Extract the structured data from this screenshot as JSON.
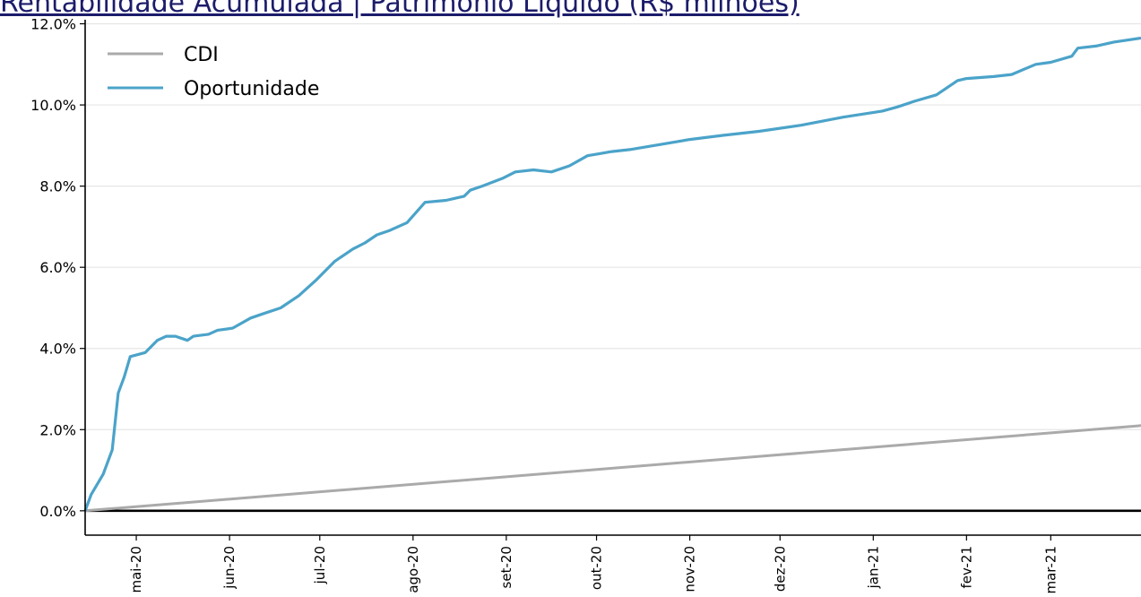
{
  "chart_data": {
    "type": "line",
    "title": "Rentabilidade Acumulada | Patrimônio Líquido (R$ milhões)",
    "xlabel": "",
    "ylabel": "",
    "ylim": [
      -0.006,
      0.121
    ],
    "yticks": [
      0.0,
      0.02,
      0.04,
      0.06,
      0.08,
      0.1,
      0.12
    ],
    "ytick_labels": [
      "0.0%",
      "2.0%",
      "4.0%",
      "6.0%",
      "8.0%",
      "10.0%",
      "12.0%"
    ],
    "xticks": [
      "mai-20",
      "jun-20",
      "jul-20",
      "ago-20",
      "set-20",
      "out-20",
      "nov-20",
      "dez-20",
      "jan-21",
      "fev-21",
      "mar-21"
    ],
    "grid": "horizontal",
    "legend_position": "top-left",
    "colors": {
      "CDI": "#aaaaaa",
      "Oportunidade": "#4ba3c9"
    },
    "series": [
      {
        "name": "CDI",
        "x": [
          "2020-04-14",
          "2021-03-31"
        ],
        "y": [
          0.0,
          0.021
        ]
      },
      {
        "name": "Oportunidade",
        "x": [
          "2020-04-14",
          "2020-04-16",
          "2020-04-20",
          "2020-04-23",
          "2020-04-25",
          "2020-04-27",
          "2020-04-29",
          "2020-05-04",
          "2020-05-08",
          "2020-05-11",
          "2020-05-14",
          "2020-05-18",
          "2020-05-20",
          "2020-05-25",
          "2020-05-28",
          "2020-06-02",
          "2020-06-08",
          "2020-06-12",
          "2020-06-18",
          "2020-06-24",
          "2020-06-30",
          "2020-07-06",
          "2020-07-12",
          "2020-07-16",
          "2020-07-20",
          "2020-07-24",
          "2020-07-30",
          "2020-08-05",
          "2020-08-12",
          "2020-08-18",
          "2020-08-20",
          "2020-08-24",
          "2020-08-31",
          "2020-09-04",
          "2020-09-10",
          "2020-09-16",
          "2020-09-22",
          "2020-09-28",
          "2020-10-02",
          "2020-10-06",
          "2020-10-12",
          "2020-10-20",
          "2020-11-01",
          "2020-11-12",
          "2020-11-24",
          "2020-12-08",
          "2020-12-22",
          "2021-01-04",
          "2021-01-09",
          "2021-01-15",
          "2021-01-22",
          "2021-01-29",
          "2021-02-01",
          "2021-02-10",
          "2021-02-16",
          "2021-02-24",
          "2021-03-01",
          "2021-03-08",
          "2021-03-10",
          "2021-03-16",
          "2021-03-22",
          "2021-03-31"
        ],
        "y": [
          0.0,
          0.004,
          0.009,
          0.015,
          0.029,
          0.033,
          0.038,
          0.039,
          0.042,
          0.043,
          0.043,
          0.042,
          0.043,
          0.0435,
          0.0445,
          0.045,
          0.0475,
          0.0485,
          0.05,
          0.053,
          0.057,
          0.0615,
          0.0645,
          0.066,
          0.068,
          0.069,
          0.071,
          0.076,
          0.0765,
          0.0775,
          0.079,
          0.08,
          0.082,
          0.0835,
          0.084,
          0.0835,
          0.085,
          0.0875,
          0.088,
          0.0885,
          0.089,
          0.09,
          0.0915,
          0.0925,
          0.0935,
          0.095,
          0.097,
          0.0985,
          0.0995,
          0.101,
          0.1025,
          0.106,
          0.1065,
          0.107,
          0.1075,
          0.11,
          0.1105,
          0.112,
          0.114,
          0.1145,
          0.1155,
          0.1165
        ]
      }
    ]
  }
}
